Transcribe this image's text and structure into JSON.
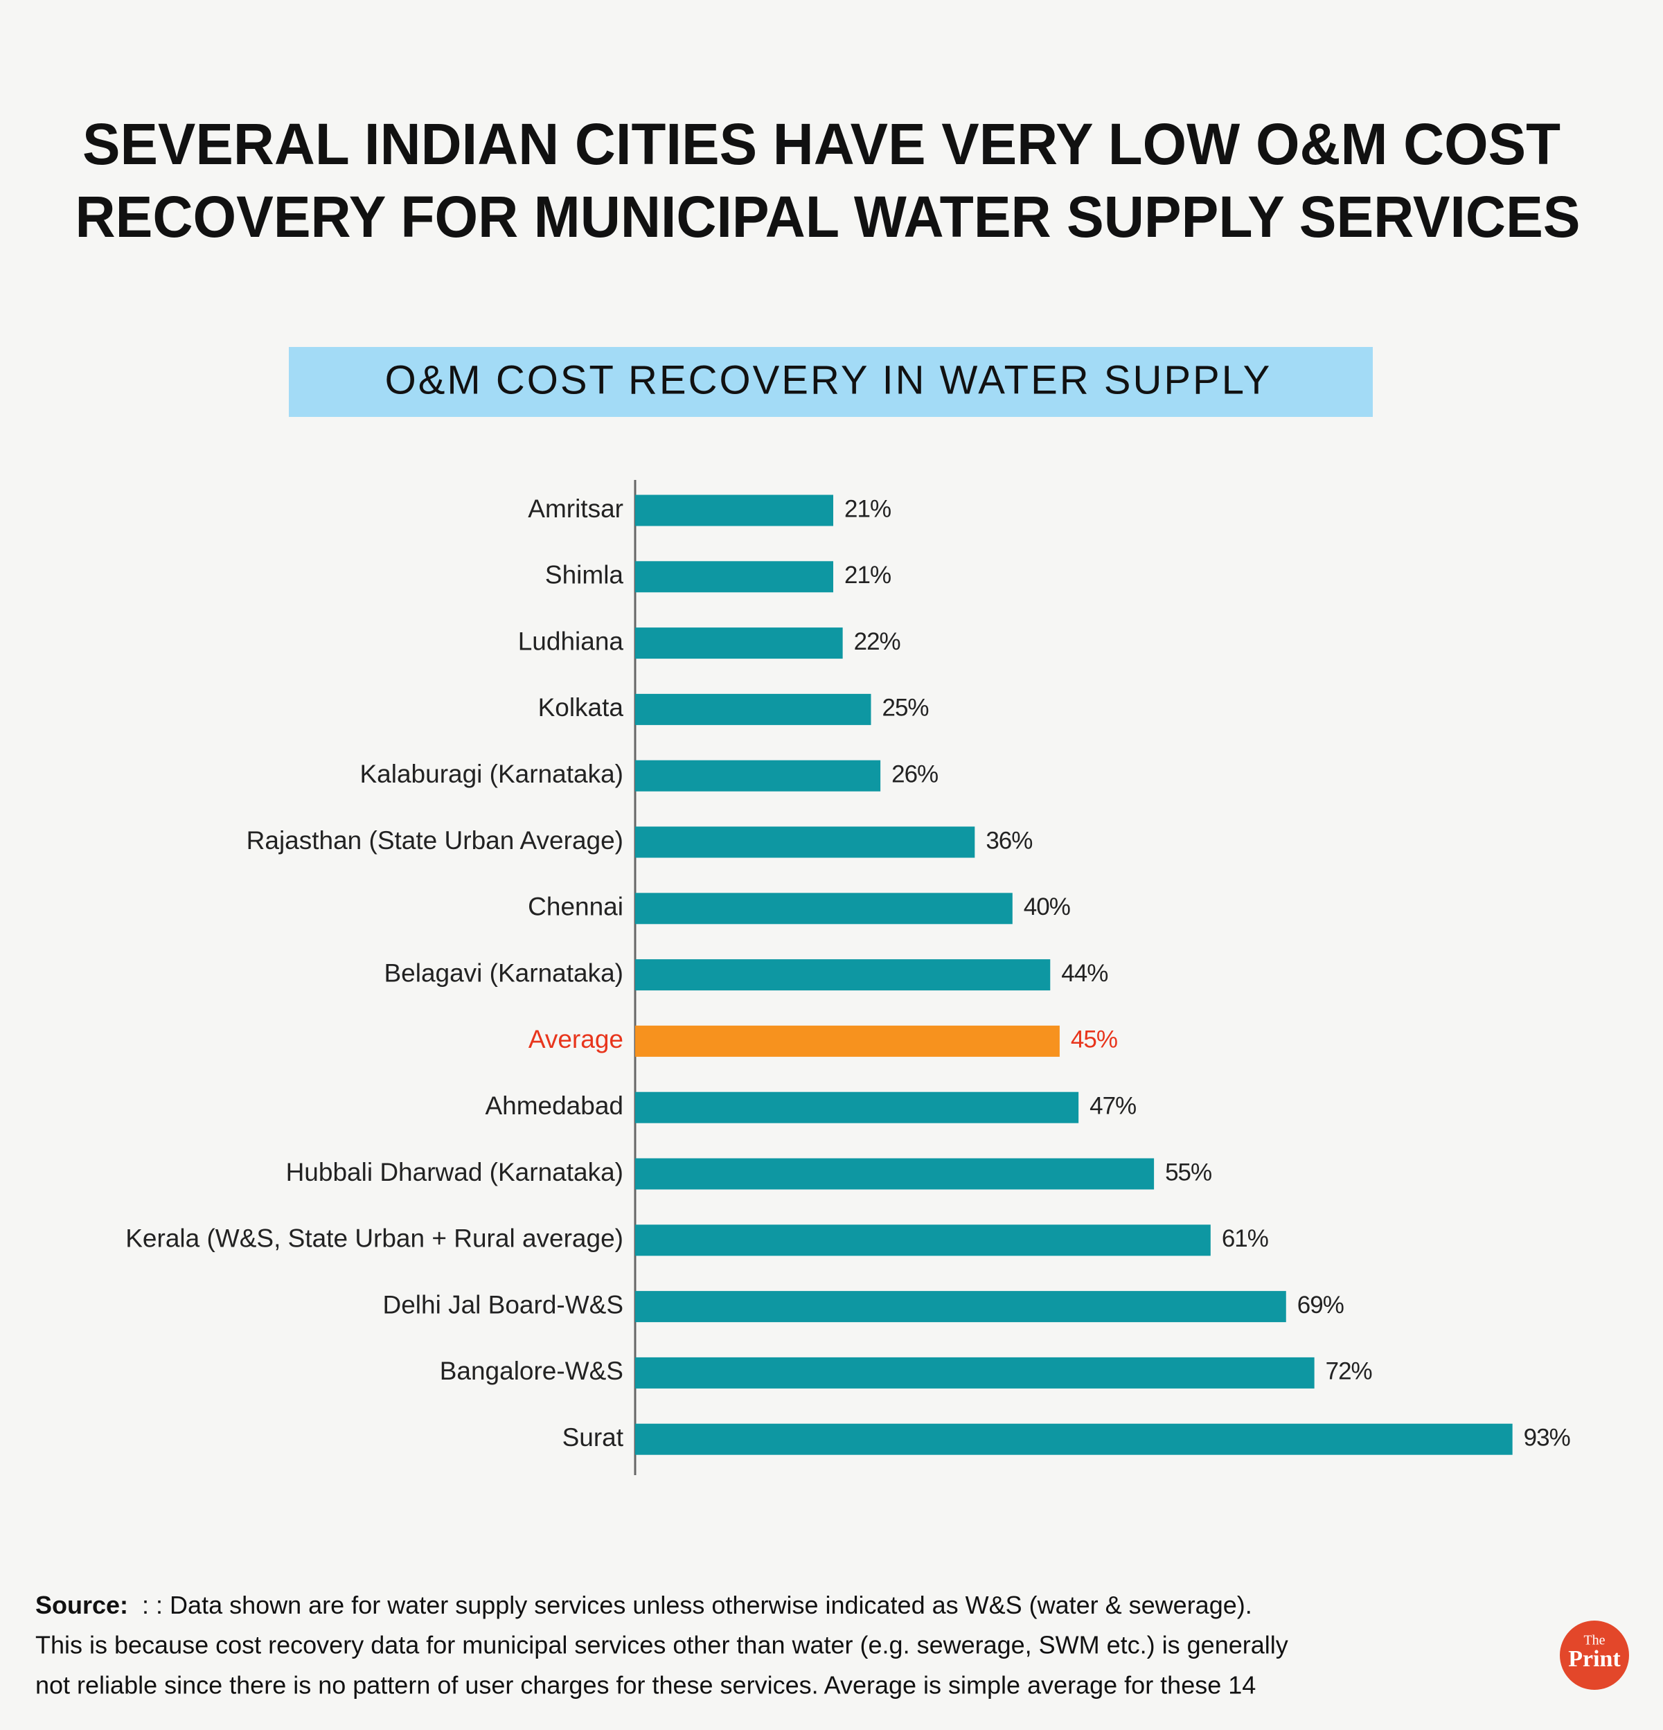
{
  "chart_data": {
    "type": "bar",
    "orientation": "horizontal",
    "title": [
      "SEVERAL INDIAN CITIES HAVE VERY LOW O&M COST",
      "RECOVERY FOR MUNICIPAL WATER SUPPLY SERVICES"
    ],
    "subtitle": "O&M COST RECOVERY IN WATER SUPPLY",
    "categories": [
      "Amritsar",
      "Shimla",
      "Ludhiana",
      "Kolkata",
      "Kalaburagi (Karnataka)",
      "Rajasthan (State Urban Average)",
      "Chennai",
      "Belagavi (Karnataka)",
      "Average",
      "Ahmedabad",
      "Hubbali Dharwad (Karnataka)",
      "Kerala (W&S, State Urban + Rural average)",
      "Delhi Jal Board-W&S",
      "Bangalore-W&S",
      "Surat"
    ],
    "values": [
      21,
      21,
      22,
      25,
      26,
      36,
      40,
      44,
      45,
      47,
      55,
      61,
      69,
      72,
      93
    ],
    "value_labels": [
      "21%",
      "21%",
      "22%",
      "25%",
      "26%",
      "36%",
      "40%",
      "44%",
      "45%",
      "47%",
      "55%",
      "61%",
      "69%",
      "72%",
      "93%"
    ],
    "colors": [
      "#0e97a2",
      "#0e97a2",
      "#0e97a2",
      "#0e97a2",
      "#0e97a2",
      "#0e97a2",
      "#0e97a2",
      "#0e97a2",
      "#f7921e",
      "#0e97a2",
      "#0e97a2",
      "#0e97a2",
      "#0e97a2",
      "#0e97a2",
      "#0e97a2"
    ],
    "label_colors": [
      "#222222",
      "#222222",
      "#222222",
      "#222222",
      "#222222",
      "#222222",
      "#222222",
      "#222222",
      "#e8351c",
      "#222222",
      "#222222",
      "#222222",
      "#222222",
      "#222222",
      "#222222"
    ]
  },
  "source": {
    "label": "Source:",
    "lines": [
      ": : Data shown are for water supply services unless otherwise indicated as W&S (water & sewerage).",
      "This is because cost recovery data for municipal services other than water (e.g. sewerage, SWM etc.) is generally",
      "not reliable since there is no pattern of user charges for these services. Average is simple average for these 14"
    ]
  },
  "logo": {
    "top": "The",
    "bottom": "Print"
  }
}
